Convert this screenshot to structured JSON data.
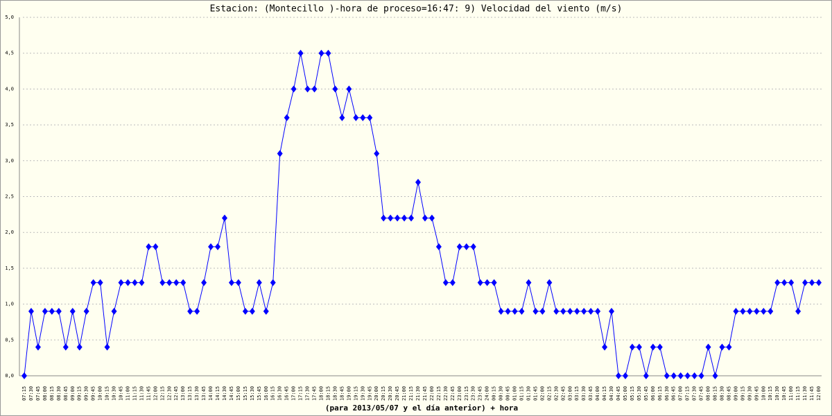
{
  "chart_data": {
    "type": "line",
    "title": "Estacion: (Montecillo )-hora de proceso=16:47: 9)  Velocidad del viento  (m/s)",
    "x_label": "(para 2013/05/07 y el día anterior) + hora",
    "categories": [
      "07:15",
      "07:30",
      "07:45",
      "08:00",
      "08:15",
      "08:30",
      "08:45",
      "09:00",
      "09:15",
      "09:30",
      "09:45",
      "10:00",
      "10:15",
      "10:30",
      "10:45",
      "11:00",
      "11:15",
      "11:30",
      "11:45",
      "12:00",
      "12:15",
      "12:30",
      "12:45",
      "13:00",
      "13:15",
      "13:30",
      "13:45",
      "14:00",
      "14:15",
      "14:30",
      "14:45",
      "15:00",
      "15:15",
      "15:30",
      "15:45",
      "16:00",
      "16:15",
      "16:30",
      "16:45",
      "17:00",
      "17:15",
      "17:30",
      "17:45",
      "18:00",
      "18:15",
      "18:30",
      "18:45",
      "19:00",
      "19:15",
      "19:30",
      "19:45",
      "20:00",
      "20:15",
      "20:30",
      "20:45",
      "21:00",
      "21:15",
      "21:30",
      "21:45",
      "22:00",
      "22:15",
      "22:30",
      "22:45",
      "23:00",
      "23:15",
      "23:30",
      "23:45",
      "24:00",
      "00:15",
      "00:30",
      "00:45",
      "01:00",
      "01:15",
      "01:30",
      "01:45",
      "02:00",
      "02:15",
      "02:30",
      "02:45",
      "03:00",
      "03:15",
      "03:30",
      "03:45",
      "04:00",
      "04:15",
      "04:30",
      "04:45",
      "05:00",
      "05:15",
      "05:30",
      "05:45",
      "06:00",
      "06:15",
      "06:30",
      "06:45",
      "07:00",
      "07:15",
      "07:30",
      "07:45",
      "08:00",
      "08:15",
      "08:30",
      "08:45",
      "09:00",
      "09:15",
      "09:30",
      "09:45",
      "10:00",
      "10:15",
      "10:30",
      "10:45",
      "11:00",
      "11:15",
      "11:30",
      "11:45",
      "12:00"
    ],
    "series": [
      {
        "name": "Velocidad del viento",
        "color": "#0000ff",
        "values": [
          0,
          0.9,
          0.4,
          0.9,
          0.9,
          0.9,
          0.4,
          0.9,
          0.4,
          0.9,
          1.3,
          1.3,
          0.4,
          0.9,
          1.3,
          1.3,
          1.3,
          1.3,
          1.8,
          1.8,
          1.3,
          1.3,
          1.3,
          1.3,
          0.9,
          0.9,
          1.3,
          1.8,
          1.8,
          2.2,
          1.3,
          1.3,
          0.9,
          0.9,
          1.3,
          0.9,
          1.3,
          3.1,
          3.6,
          4.0,
          4.5,
          4.0,
          4.0,
          4.5,
          4.5,
          4.0,
          3.6,
          4.0,
          3.6,
          3.6,
          3.6,
          3.1,
          2.2,
          2.2,
          2.2,
          2.2,
          2.2,
          2.7,
          2.2,
          2.2,
          1.8,
          1.3,
          1.3,
          1.8,
          1.8,
          1.8,
          1.3,
          1.3,
          1.3,
          0.9,
          0.9,
          0.9,
          0.9,
          1.3,
          0.9,
          0.9,
          1.3,
          0.9,
          0.9,
          0.9,
          0.9,
          0.9,
          0.9,
          0.9,
          0.4,
          0.9,
          0,
          0,
          0.4,
          0.4,
          0,
          0.4,
          0.4,
          0,
          0,
          0,
          0,
          0,
          0,
          0.4,
          0,
          0.4,
          0.4,
          0.9,
          0.9,
          0.9,
          0.9,
          0.9,
          0.9,
          1.3,
          1.3,
          1.3,
          0.9,
          1.3,
          1.3,
          1.3
        ]
      }
    ],
    "ylim": [
      0,
      5
    ],
    "yticks": [
      {
        "value": 0,
        "label": "0,0"
      },
      {
        "value": 0.5,
        "label": "0,5"
      },
      {
        "value": 1,
        "label": "1,0"
      },
      {
        "value": 1.5,
        "label": "1,5"
      },
      {
        "value": 2,
        "label": "2,0"
      },
      {
        "value": 2.5,
        "label": "2,5"
      },
      {
        "value": 3,
        "label": "3,0"
      },
      {
        "value": 3.5,
        "label": "3,5"
      },
      {
        "value": 4,
        "label": "4,0"
      },
      {
        "value": 4.5,
        "label": "4,5"
      },
      {
        "value": 5,
        "label": "5,0"
      }
    ],
    "grid": true
  }
}
